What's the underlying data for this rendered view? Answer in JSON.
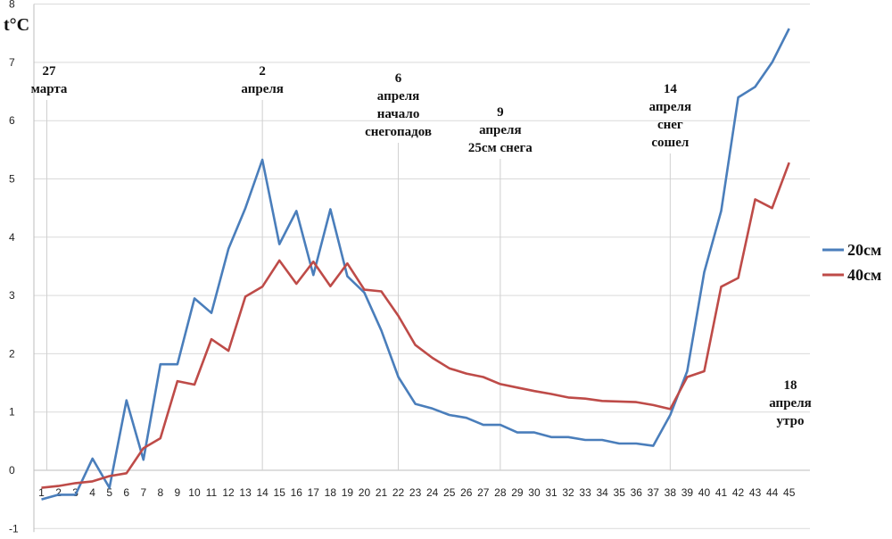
{
  "chart_data": {
    "type": "line",
    "ylabel": "t°C",
    "ylim": [
      -1,
      8
    ],
    "yticks": [
      -1,
      0,
      1,
      2,
      3,
      4,
      5,
      6,
      7,
      8
    ],
    "x": [
      1,
      2,
      3,
      4,
      5,
      6,
      7,
      8,
      9,
      10,
      11,
      12,
      13,
      14,
      15,
      16,
      17,
      18,
      19,
      20,
      21,
      22,
      23,
      24,
      25,
      26,
      27,
      28,
      29,
      30,
      31,
      32,
      33,
      34,
      35,
      36,
      37,
      38,
      39,
      40,
      41,
      42,
      43,
      44,
      45
    ],
    "legend_position": "right",
    "grid": true,
    "series": [
      {
        "name": "20см",
        "color": "#4a7ebb",
        "values": [
          -0.5,
          -0.42,
          -0.42,
          0.2,
          -0.3,
          1.2,
          0.18,
          1.82,
          1.82,
          2.95,
          2.7,
          3.8,
          4.5,
          5.33,
          3.88,
          4.45,
          3.35,
          4.48,
          3.33,
          3.05,
          2.4,
          1.6,
          1.14,
          1.06,
          0.95,
          0.9,
          0.78,
          0.78,
          0.65,
          0.65,
          0.57,
          0.57,
          0.52,
          0.52,
          0.46,
          0.46,
          0.42,
          0.95,
          1.7,
          3.4,
          4.45,
          6.4,
          6.58,
          7.0,
          7.58
        ]
      },
      {
        "name": "40см",
        "color": "#be4b48",
        "values": [
          -0.3,
          -0.27,
          -0.22,
          -0.19,
          -0.1,
          -0.05,
          0.38,
          0.55,
          1.53,
          1.47,
          2.25,
          2.05,
          2.98,
          3.15,
          3.6,
          3.2,
          3.58,
          3.16,
          3.55,
          3.1,
          3.07,
          2.65,
          2.15,
          1.93,
          1.75,
          1.66,
          1.6,
          1.48,
          1.42,
          1.36,
          1.31,
          1.25,
          1.23,
          1.19,
          1.18,
          1.17,
          1.12,
          1.05,
          1.6,
          1.7,
          3.15,
          3.3,
          4.65,
          4.5,
          5.28
        ]
      }
    ],
    "annotations": [
      {
        "x": 1,
        "lines": [
          "27",
          "марта"
        ]
      },
      {
        "x": 14,
        "lines": [
          "2",
          "апреля"
        ]
      },
      {
        "x": 22,
        "lines": [
          "6",
          "апреля",
          "начало",
          "снегопадов"
        ]
      },
      {
        "x": 28,
        "lines": [
          "9",
          "апреля",
          "25см снега"
        ]
      },
      {
        "x": 38,
        "lines": [
          "14",
          "апреля",
          "снег",
          "сошел"
        ]
      },
      {
        "x": 45,
        "lines": [
          "18",
          "апреля",
          "утро"
        ]
      }
    ]
  }
}
